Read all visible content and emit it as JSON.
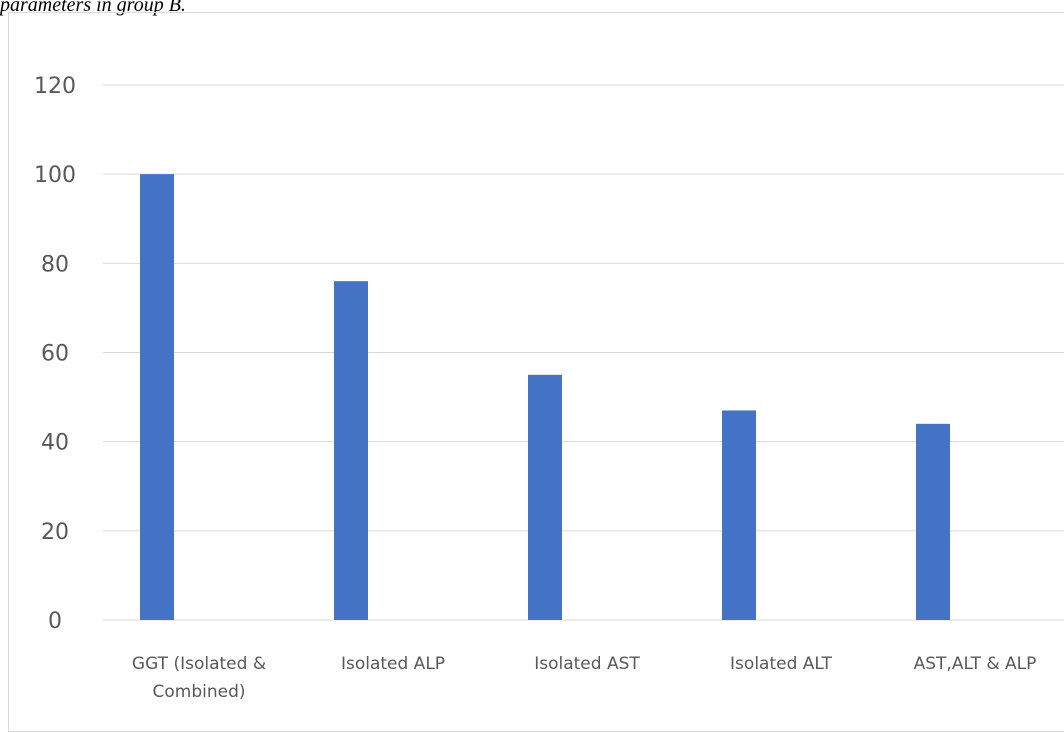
{
  "caption": "parameters in group B.",
  "chart_data": {
    "type": "bar",
    "categories": [
      [
        "GGT (Isolated &",
        "Combined)"
      ],
      [
        "Isolated ALP"
      ],
      [
        "Isolated AST"
      ],
      [
        "Isolated ALT"
      ],
      [
        "AST,ALT & ALP"
      ]
    ],
    "values": [
      100,
      76,
      55,
      47,
      44
    ],
    "ylim": [
      0,
      120
    ],
    "yticks": [
      0,
      20,
      40,
      60,
      80,
      100,
      120
    ],
    "grid": true,
    "bar_color": "#4472c4",
    "grid_color": "#d9d9d9",
    "text_color": "#595959"
  }
}
